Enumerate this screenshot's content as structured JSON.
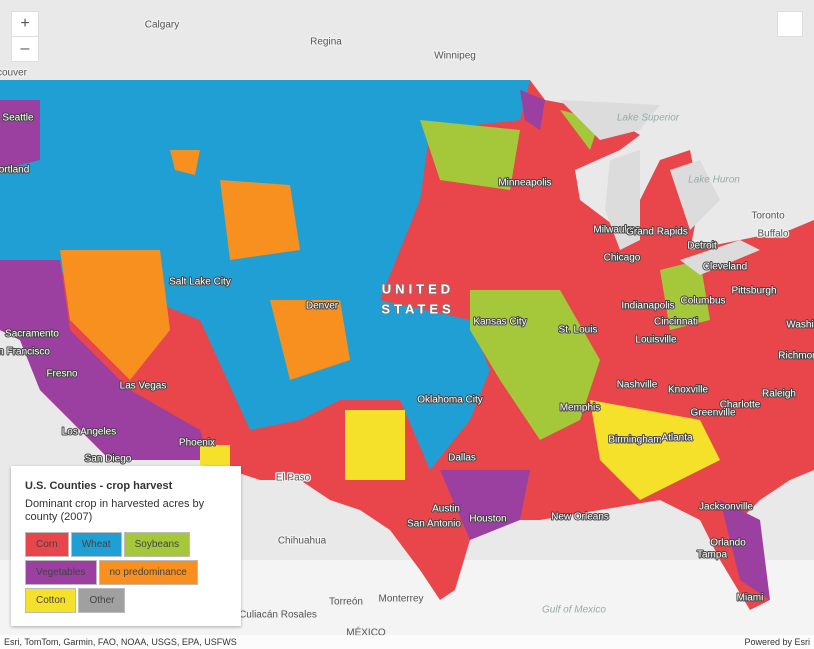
{
  "controls": {
    "zoom_in": "+",
    "zoom_out": "–"
  },
  "map": {
    "labels": [
      "Calgary",
      "Regina",
      "Winnipeg",
      "couver",
      "Seattle",
      "ortland",
      "Minneapolis",
      "Lake Superior",
      "Lake Huron",
      "Toronto",
      "Buffalo",
      "Milwaukee",
      "Grand Rapids",
      "Detroit",
      "Chicago",
      "Cleveland",
      "Pittsburgh",
      "Salt Lake City",
      "Denver",
      "UNITED",
      "STATES",
      "Kansas City",
      "St. Louis",
      "Indianapolis",
      "Columbus",
      "Cincinnati",
      "Louisville",
      "Washi",
      "Sacramento",
      "San Francisco",
      "Fresno",
      "Las Vegas",
      "Oklahoma City",
      "Nashville",
      "Knoxville",
      "Charlotte",
      "Richmon",
      "Raleigh",
      "Memphis",
      "Greenville",
      "Los Angeles",
      "Phoenix",
      "San Diego",
      "Birmingham",
      "Atlanta",
      "Dallas",
      "El Paso",
      "Austin",
      "San Antonio",
      "Houston",
      "New Orleans",
      "Jacksonville",
      "Orlando",
      "Tampa",
      "Miami",
      "Chihuahua",
      "Torreón",
      "Monterrey",
      "Culiacán Rosales",
      "Gulf of Mexico",
      "MÉXICO"
    ]
  },
  "legend": {
    "title": "U.S. Counties - crop harvest",
    "subtitle": "Dominant crop in harvested acres by county (2007)",
    "items": [
      {
        "label": "Corn",
        "color": "#e8464a"
      },
      {
        "label": "Wheat",
        "color": "#1f9fd4"
      },
      {
        "label": "Soybeans",
        "color": "#a5c73a"
      },
      {
        "label": "Vegetables",
        "color": "#9b3fa0"
      },
      {
        "label": "no predominance",
        "color": "#f7901e"
      },
      {
        "label": "Cotton",
        "color": "#f5e02a"
      },
      {
        "label": "Other",
        "color": "#a0a0a0"
      }
    ]
  },
  "footer": {
    "attribution": "Esri, TomTom, Garmin, FAO, NOAA, USGS, EPA, USFWS",
    "powered": "Powered by Esri"
  }
}
